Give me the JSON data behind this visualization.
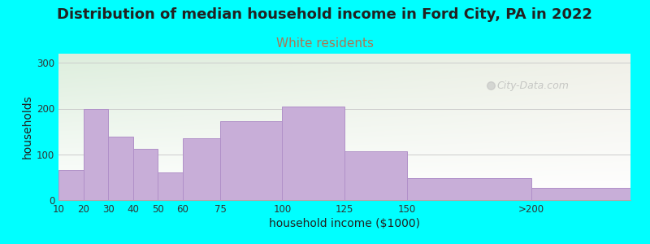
{
  "title": "Distribution of median household income in Ford City, PA in 2022",
  "subtitle": "White residents",
  "xlabel": "household income ($1000)",
  "ylabel": "households",
  "background_color": "#00FFFF",
  "plot_bg_color_topleft": "#ddeedd",
  "plot_bg_color_topright": "#f5f5f0",
  "plot_bg_color_bottom": "#ffffff",
  "bar_color": "#c8aed8",
  "bar_edge_color": "#b090c8",
  "categories": [
    "10",
    "20",
    "30",
    "40",
    "50",
    "60",
    "75",
    "100",
    "125",
    "150",
    ">200"
  ],
  "values": [
    65,
    200,
    138,
    112,
    60,
    135,
    172,
    204,
    107,
    48,
    27
  ],
  "ylim": [
    0,
    320
  ],
  "yticks": [
    0,
    100,
    200,
    300
  ],
  "watermark": "City-Data.com",
  "title_fontsize": 13,
  "subtitle_fontsize": 11,
  "subtitle_color": "#aa7755",
  "tick_positions": [
    10,
    20,
    30,
    40,
    50,
    60,
    75,
    100,
    125,
    150,
    200,
    240
  ]
}
